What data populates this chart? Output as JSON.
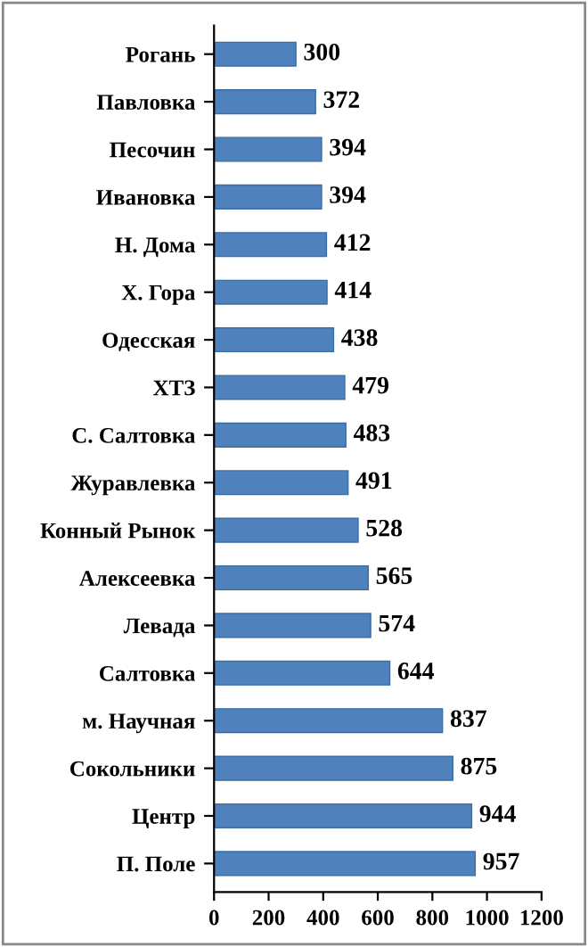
{
  "chart_data": {
    "type": "bar",
    "orientation": "horizontal",
    "categories": [
      "Рогань",
      "Павловка",
      "Песочин",
      "Ивановка",
      "Н. Дома",
      "Х. Гора",
      "Одесская",
      "ХТЗ",
      "С. Салтовка",
      "Журавлевка",
      "Конный Рынок",
      "Алексеевка",
      "Левада",
      "Салтовка",
      "м. Научная",
      "Сокольники",
      "Центр",
      "П. Поле"
    ],
    "values": [
      300,
      372,
      394,
      394,
      412,
      414,
      438,
      479,
      483,
      491,
      528,
      565,
      574,
      644,
      837,
      875,
      944,
      957
    ],
    "color": "#4f81bd",
    "xlim": [
      0,
      1200
    ],
    "xticks": [
      0,
      200,
      400,
      600,
      800,
      1000,
      1200
    ],
    "data_labels": true,
    "grid": false,
    "legend": false
  }
}
